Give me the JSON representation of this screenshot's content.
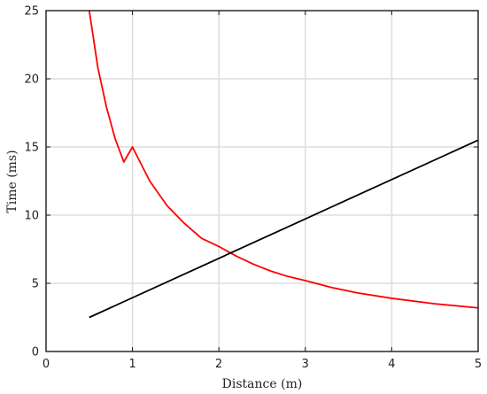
{
  "chart_data": {
    "type": "line",
    "title": "",
    "xlabel": "Distance (m)",
    "ylabel": "Time (ms)",
    "xlim": [
      0,
      5
    ],
    "ylim": [
      0,
      25
    ],
    "xticks": [
      0,
      1,
      2,
      3,
      4,
      5
    ],
    "yticks": [
      0,
      5,
      10,
      15,
      20,
      25
    ],
    "grid": true,
    "legend": "none",
    "series": [
      {
        "color": "#ff0000",
        "x": [
          0.5,
          0.6,
          0.7,
          0.8,
          0.9,
          1.0,
          1.2,
          1.4,
          1.6,
          1.8,
          2.0,
          2.2,
          2.4,
          2.6,
          2.8,
          3.0,
          3.3,
          3.6,
          4.0,
          4.5,
          5.0
        ],
        "y": [
          25.0,
          20.8,
          17.9,
          15.6,
          13.9,
          15.0,
          12.5,
          10.7,
          9.4,
          8.3,
          7.7,
          7.0,
          6.4,
          5.9,
          5.5,
          5.2,
          4.7,
          4.3,
          3.9,
          3.5,
          3.2
        ]
      },
      {
        "color": "#000000",
        "x": [
          0.5,
          5.0
        ],
        "y": [
          2.5,
          15.5
        ]
      }
    ]
  }
}
